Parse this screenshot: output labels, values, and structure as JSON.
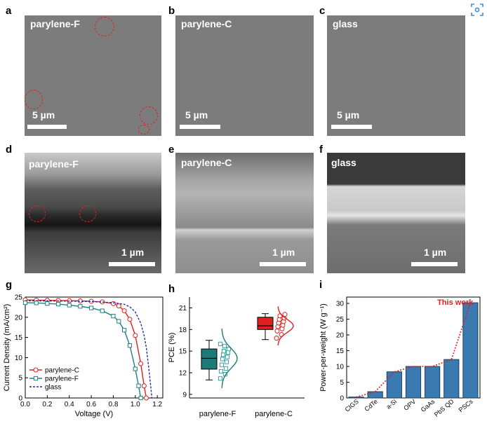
{
  "panels": {
    "a": {
      "letter": "a",
      "label": "parylene-F",
      "scale": "5 µm"
    },
    "b": {
      "letter": "b",
      "label": "parylene-C",
      "scale": "5 µm"
    },
    "c": {
      "letter": "c",
      "label": "glass",
      "scale": "5 µm"
    },
    "d": {
      "letter": "d",
      "label": "parylene-F",
      "scale": "1 µm"
    },
    "e": {
      "letter": "e",
      "label": "parylene-C",
      "scale": "1 µm"
    },
    "f": {
      "letter": "f",
      "label": "glass",
      "scale": "1 µm"
    },
    "g": {
      "letter": "g"
    },
    "h": {
      "letter": "h"
    },
    "i": {
      "letter": "i"
    }
  },
  "corner_icon": "scan-icon",
  "chart_data": [
    {
      "type": "line",
      "panel": "g",
      "xlabel": "Voltage (V)",
      "ylabel": "Current Density (mA/cm²)",
      "xlim": [
        0,
        1.25
      ],
      "ylim": [
        0,
        25
      ],
      "xticks": [
        "0.0",
        "0.2",
        "0.4",
        "0.6",
        "0.8",
        "1.0",
        "1.2"
      ],
      "yticks": [
        "0",
        "5",
        "10",
        "15",
        "20",
        "25"
      ],
      "legend_position": "bottom-left",
      "series": [
        {
          "name": "parylene-C",
          "color": "#e02020",
          "marker": "circle",
          "x": [
            0,
            0.1,
            0.2,
            0.3,
            0.4,
            0.5,
            0.6,
            0.7,
            0.8,
            0.85,
            0.9,
            0.95,
            1.0,
            1.05,
            1.08,
            1.1
          ],
          "y": [
            24.3,
            24.25,
            24.2,
            24.15,
            24.1,
            24.05,
            23.95,
            23.8,
            23.4,
            22.8,
            21.6,
            19.5,
            15.5,
            8.5,
            3.0,
            0
          ]
        },
        {
          "name": "parylene-F",
          "color": "#208080",
          "marker": "square",
          "x": [
            0,
            0.1,
            0.2,
            0.3,
            0.4,
            0.5,
            0.6,
            0.7,
            0.8,
            0.85,
            0.9,
            0.95,
            1.0,
            1.03,
            1.05
          ],
          "y": [
            23.6,
            23.55,
            23.4,
            23.25,
            23.0,
            22.7,
            22.3,
            21.6,
            20.3,
            19.0,
            16.8,
            13.0,
            7.2,
            3.0,
            0
          ]
        },
        {
          "name": "glass",
          "color": "#1a2fa0",
          "marker": "dash",
          "x": [
            0,
            0.2,
            0.4,
            0.6,
            0.8,
            0.9,
            0.95,
            1.0,
            1.05,
            1.08,
            1.1,
            1.12,
            1.14,
            1.15
          ],
          "y": [
            24.1,
            24.05,
            24.0,
            23.9,
            23.6,
            23.2,
            22.6,
            21.3,
            18.5,
            15.5,
            12.5,
            8.0,
            3.0,
            0
          ]
        }
      ]
    },
    {
      "type": "box",
      "panel": "h",
      "ylabel": "PCE (%)",
      "ylim": [
        8.5,
        22.5
      ],
      "yticks": [
        "9",
        "12",
        "15",
        "18",
        "21"
      ],
      "categories": [
        "parylene-F",
        "parylene-C"
      ],
      "series": [
        {
          "name": "parylene-F",
          "color": "#1e7a78",
          "min": 11,
          "q1": 12.5,
          "median": 14,
          "q3": 15.3,
          "max": 16.5,
          "points": [
            11.2,
            11.8,
            12.2,
            12.6,
            13.1,
            13.5,
            13.9,
            14.2,
            14.5,
            14.8,
            15.0,
            15.3,
            15.7,
            16.0
          ]
        },
        {
          "name": "parylene-C",
          "color": "#e02020",
          "min": 16.6,
          "q1": 18.0,
          "median": 18.5,
          "q3": 19.7,
          "max": 20.2,
          "points": [
            16.8,
            17.3,
            17.8,
            18.1,
            18.4,
            18.6,
            18.9,
            19.1,
            19.4,
            19.6,
            19.9,
            20.1
          ]
        }
      ]
    },
    {
      "type": "bar",
      "panel": "i",
      "ylabel": "Power-per-weight (W g⁻¹)",
      "ylim": [
        0,
        32
      ],
      "yticks": [
        "0",
        "5",
        "10",
        "15",
        "20",
        "25",
        "30"
      ],
      "categories": [
        "CIGS",
        "CdTe",
        "a-Si",
        "OPV",
        "GaAs",
        "PbS QD",
        "PSCs"
      ],
      "values": [
        0.3,
        2.0,
        8.3,
        10.0,
        10.0,
        12.2,
        30.2
      ],
      "bar_color": "#3a7ab0",
      "annotation": "This work",
      "annotation_color": "#e02020"
    }
  ]
}
